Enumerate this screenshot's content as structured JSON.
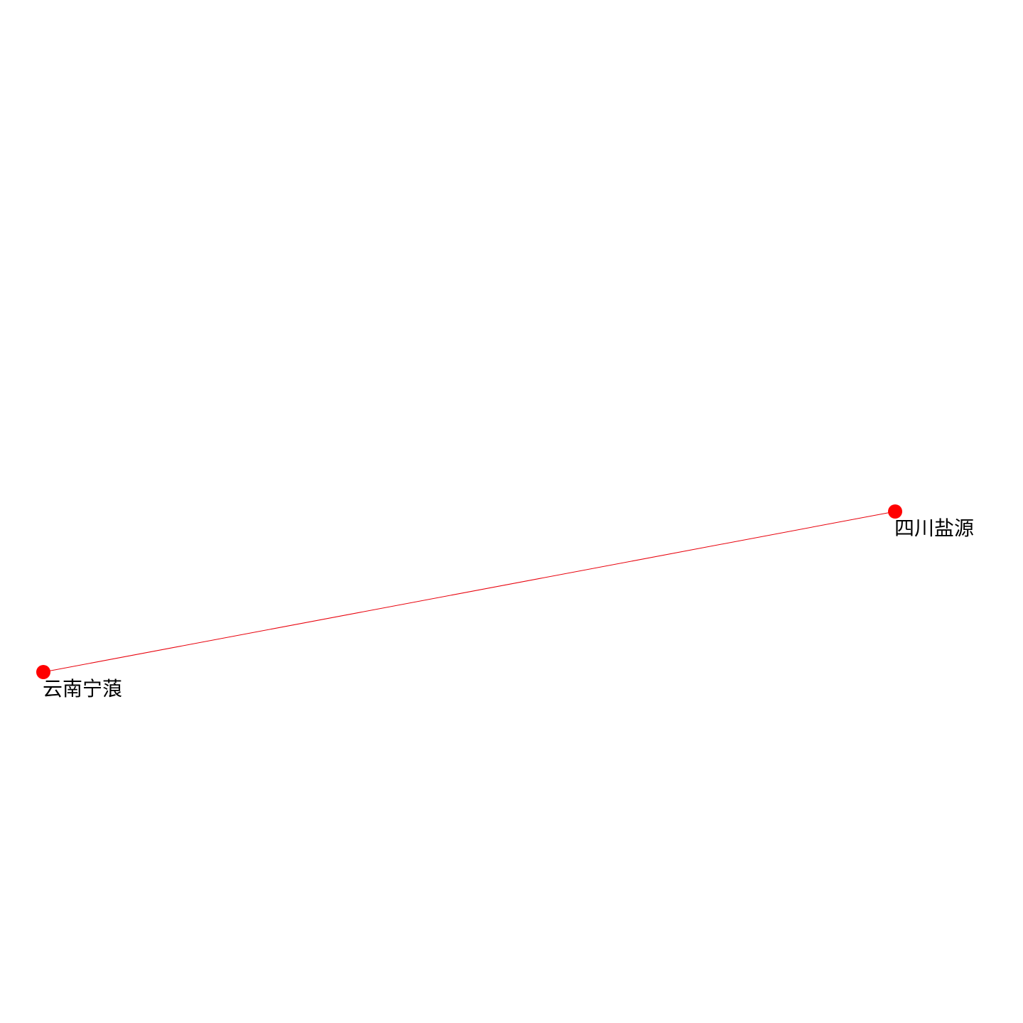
{
  "graph": {
    "nodes": [
      {
        "id": "sichuan-yanyuan",
        "label": "四川盐源"
      },
      {
        "id": "yunnan-ninglang",
        "label": "云南宁蒗"
      }
    ],
    "edges": [
      {
        "source": "sichuan-yanyuan",
        "target": "yunnan-ninglang"
      }
    ],
    "colors": {
      "node": "#ff0000",
      "edge": "#e8000b",
      "label": "#000000",
      "background": "#ffffff"
    }
  }
}
